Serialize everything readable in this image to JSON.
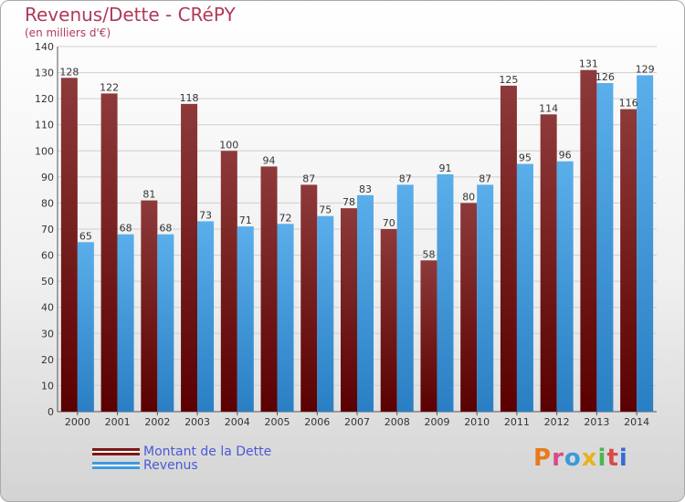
{
  "title": "Revenus/Dette - CRéPY",
  "subtitle": "(en milliers d'€)",
  "logo": {
    "text": "Proxiti",
    "colors": [
      "#e87a1a",
      "#d94a8c",
      "#3a9ad9",
      "#e8b21a",
      "#4ab84a",
      "#d94a4a",
      "#3a6ad9"
    ]
  },
  "legend": {
    "items": [
      {
        "label": "Montant de la Dette",
        "color": "#7a1a1a"
      },
      {
        "label": "Revenus",
        "color": "#3d9be0"
      }
    ]
  },
  "chart_data": {
    "type": "bar",
    "title": "Revenus/Dette - CRéPY",
    "subtitle": "(en milliers d'€)",
    "categories": [
      "2000",
      "2001",
      "2002",
      "2003",
      "2004",
      "2005",
      "2006",
      "2007",
      "2008",
      "2009",
      "2010",
      "2011",
      "2012",
      "2013",
      "2014"
    ],
    "series": [
      {
        "name": "Montant de la Dette",
        "color": "#7a1a1a",
        "values": [
          128,
          122,
          81,
          118,
          100,
          94,
          87,
          78,
          70,
          58,
          80,
          125,
          114,
          131,
          116
        ]
      },
      {
        "name": "Revenus",
        "color": "#3d9be0",
        "values": [
          65,
          68,
          68,
          73,
          71,
          72,
          75,
          83,
          87,
          91,
          87,
          95,
          96,
          126,
          129
        ]
      }
    ],
    "ylim": [
      0,
      140
    ],
    "yticks": [
      0,
      10,
      20,
      30,
      40,
      50,
      60,
      70,
      80,
      90,
      100,
      110,
      120,
      130,
      140
    ],
    "grid": true,
    "legend_position": "bottom-left"
  }
}
